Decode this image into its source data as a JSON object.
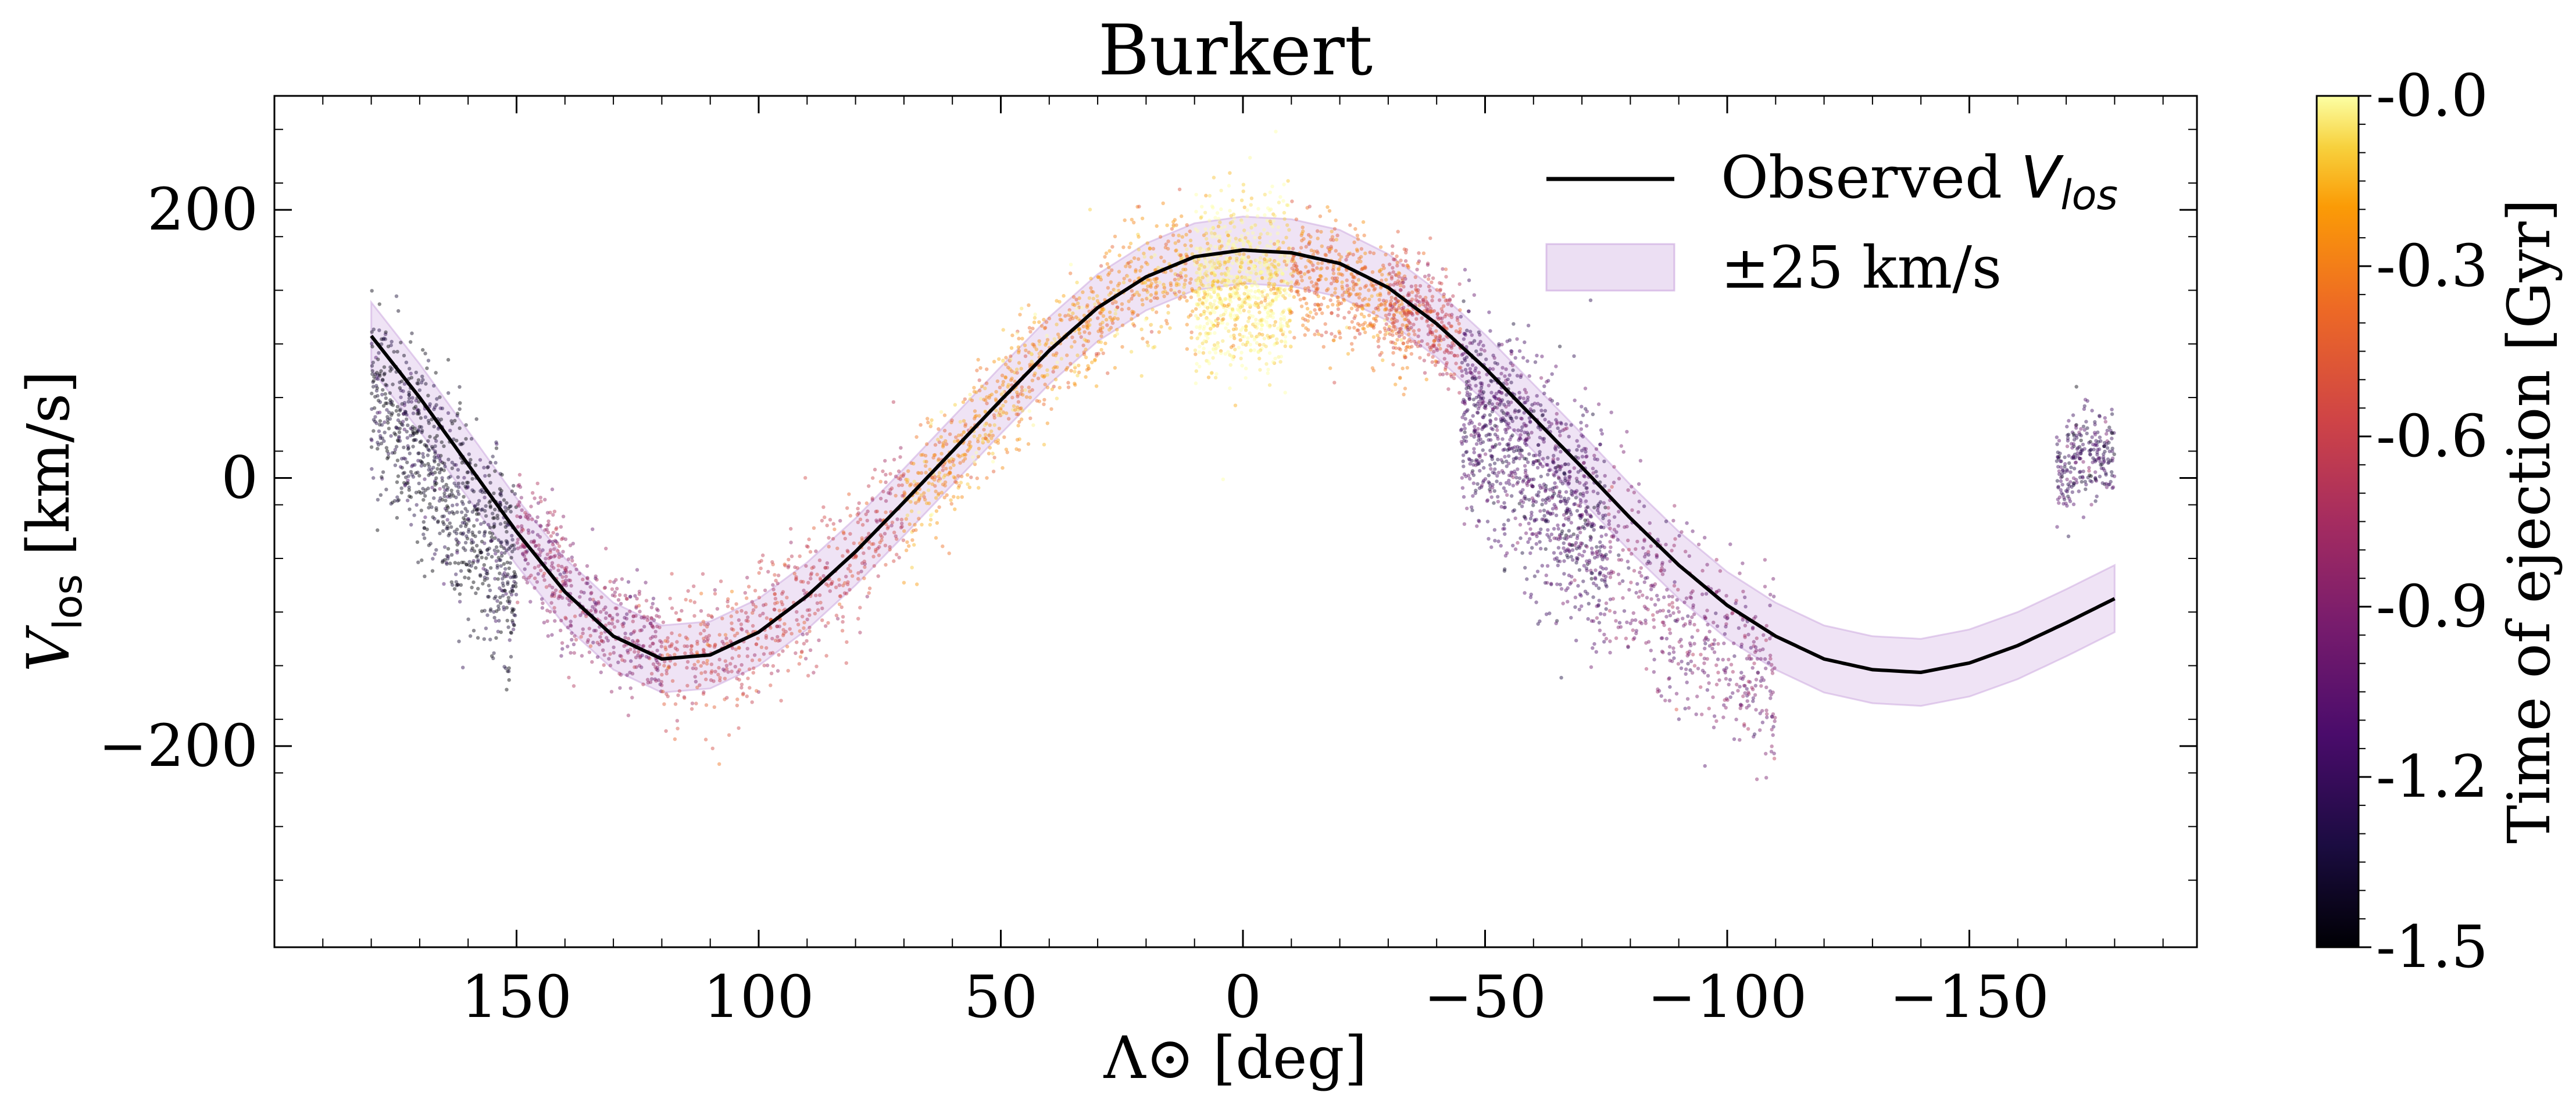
{
  "chart_data": {
    "type": "scatter",
    "title": "Burkert",
    "xlabel": "Λ⊙ [deg]",
    "ylabel_prefix": "V",
    "ylabel_sub": "los",
    "ylabel_suffix": " [km/s]",
    "xlim": [
      200,
      -197
    ],
    "ylim": [
      -350,
      285
    ],
    "xticks": [
      150,
      100,
      50,
      0,
      -50,
      -100,
      -150
    ],
    "xtick_labels": [
      "150",
      "100",
      "50",
      "0",
      "−50",
      "−100",
      "−150"
    ],
    "yticks": [
      200,
      0,
      -200
    ],
    "ytick_labels": [
      "200",
      "0",
      "−200"
    ],
    "legend": {
      "position": "top-right",
      "line_label_prefix": "Observed ",
      "line_label_italic": "V",
      "line_label_sub": "los",
      "band_label": "±25 km/s"
    },
    "band_halfwidth": 25,
    "observed_curve": {
      "x": [
        180,
        170,
        160,
        150,
        140,
        130,
        120,
        110,
        100,
        90,
        80,
        70,
        60,
        50,
        40,
        30,
        20,
        10,
        0,
        -10,
        -20,
        -30,
        -40,
        -50,
        -60,
        -70,
        -80,
        -90,
        -100,
        -110,
        -120,
        -130,
        -140,
        -150,
        -160,
        -170,
        -180
      ],
      "y": [
        106,
        60,
        10,
        -40,
        -85,
        -118,
        -135,
        -132,
        -115,
        -88,
        -55,
        -18,
        20,
        58,
        95,
        127,
        150,
        165,
        170,
        168,
        160,
        142,
        115,
        82,
        45,
        8,
        -30,
        -65,
        -95,
        -118,
        -135,
        -143,
        -145,
        -138,
        -125,
        -108,
        -90
      ]
    },
    "colorbar": {
      "label": "Time of ejection [Gyr]",
      "range": [
        -1.5,
        0.0
      ],
      "tick_labels": [
        "-0.0",
        "-0.3",
        "-0.6",
        "-0.9",
        "-1.2",
        "-1.5"
      ],
      "tick_values": [
        0.0,
        -0.3,
        -0.6,
        -0.9,
        -1.2,
        -1.5
      ],
      "colormap": "inferno"
    },
    "scatter_clouds": [
      {
        "x_range": [
          180,
          150
        ],
        "y_offset": -40,
        "spread": 35,
        "t": -1.4,
        "count": 900
      },
      {
        "x_range": [
          150,
          120
        ],
        "y_offset": 5,
        "spread": 22,
        "t": -0.85,
        "count": 500
      },
      {
        "x_range": [
          120,
          70
        ],
        "y_offset": 0,
        "spread": 25,
        "t": -0.6,
        "count": 600
      },
      {
        "x_range": [
          70,
          10
        ],
        "y_offset": -5,
        "spread": 22,
        "t": -0.25,
        "count": 900
      },
      {
        "x_range": [
          10,
          -10
        ],
        "y_offset": -25,
        "spread": 30,
        "t": -0.02,
        "count": 900
      },
      {
        "x_range": [
          -10,
          -35
        ],
        "y_offset": -15,
        "spread": 22,
        "t": -0.35,
        "count": 500
      },
      {
        "x_range": [
          -30,
          -45
        ],
        "y_offset": 0,
        "spread": 20,
        "t": -0.6,
        "count": 300
      },
      {
        "x_range": [
          -45,
          -75
        ],
        "y_offset": -40,
        "spread": 40,
        "t": -1.15,
        "count": 1100
      },
      {
        "x_range": [
          -75,
          -110
        ],
        "y_offset": -40,
        "spread": 35,
        "t": -0.95,
        "count": 500
      },
      {
        "x_range": [
          -168,
          -180
        ],
        "y_offset": 115,
        "spread": 18,
        "t": -1.2,
        "count": 250
      }
    ]
  }
}
